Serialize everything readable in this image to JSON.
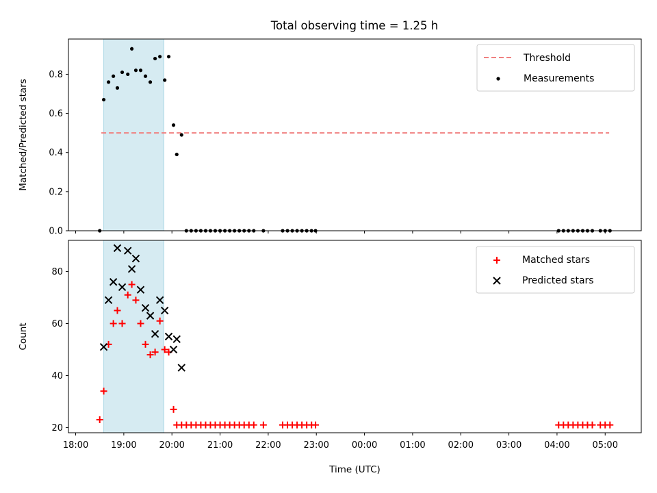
{
  "title": "Total observing time = 1.25 h",
  "colors": {
    "threshold": "#f08080",
    "measurement": "#000000",
    "matched": "#ff0000",
    "predicted": "#000000",
    "span": "#add8e6"
  },
  "chart_data": [
    {
      "type": "scatter",
      "name": "ratio",
      "ylabel": "Matched/Predicted stars",
      "xlabel": "",
      "ylim": [
        0,
        0.98
      ],
      "yticks": [
        0.0,
        0.2,
        0.4,
        0.6,
        0.8
      ],
      "ytick_labels": [
        "0.0",
        "0.2",
        "0.4",
        "0.6",
        "0.8"
      ],
      "legend_position": "top-right",
      "threshold": {
        "name": "Threshold",
        "value": 0.5,
        "x_start": "18:32",
        "x_end": "05:05"
      },
      "span": {
        "x_start": "18:35",
        "x_end": "19:50"
      },
      "series": [
        {
          "name": "Measurements",
          "x": [
            "18:30",
            "18:35",
            "18:41",
            "18:47",
            "18:52",
            "18:58",
            "19:05",
            "19:10",
            "19:15",
            "19:21",
            "19:27",
            "19:33",
            "19:39",
            "19:45",
            "19:51",
            "19:56",
            "20:02",
            "20:06",
            "20:12",
            "20:18",
            "20:24",
            "20:30",
            "20:36",
            "20:42",
            "20:48",
            "20:54",
            "21:00",
            "21:06",
            "21:12",
            "21:18",
            "21:24",
            "21:30",
            "21:36",
            "21:42",
            "21:54",
            "22:18",
            "22:24",
            "22:30",
            "22:36",
            "22:42",
            "22:48",
            "22:54",
            "22:59",
            "04:02",
            "04:08",
            "04:14",
            "04:20",
            "04:26",
            "04:32",
            "04:38",
            "04:44",
            "04:54",
            "05:00",
            "05:06"
          ],
          "values": [
            0.0,
            0.67,
            0.76,
            0.79,
            0.73,
            0.81,
            0.8,
            0.93,
            0.82,
            0.82,
            0.79,
            0.76,
            0.88,
            0.89,
            0.77,
            0.89,
            0.54,
            0.39,
            0.49,
            0.0,
            0.0,
            0.0,
            0.0,
            0.0,
            0.0,
            0.0,
            0.0,
            0.0,
            0.0,
            0.0,
            0.0,
            0.0,
            0.0,
            0.0,
            0.0,
            0.0,
            0.0,
            0.0,
            0.0,
            0.0,
            0.0,
            0.0,
            0.0,
            0.0,
            0.0,
            0.0,
            0.0,
            0.0,
            0.0,
            0.0,
            0.0,
            0.0,
            0.0,
            0.0
          ]
        }
      ]
    },
    {
      "type": "scatter",
      "name": "counts",
      "ylabel": "Count",
      "xlabel": "Time (UTC)",
      "ylim": [
        18,
        92
      ],
      "yticks": [
        20,
        40,
        60,
        80
      ],
      "ytick_labels": [
        "20",
        "40",
        "60",
        "80"
      ],
      "x_ticks": [
        "18:00",
        "19:00",
        "20:00",
        "21:00",
        "22:00",
        "23:00",
        "00:00",
        "01:00",
        "02:00",
        "03:00",
        "04:00",
        "05:00"
      ],
      "legend_position": "top-right",
      "span": {
        "x_start": "18:35",
        "x_end": "19:50"
      },
      "series": [
        {
          "name": "Matched stars",
          "marker": "plus",
          "x": [
            "18:30",
            "18:35",
            "18:41",
            "18:47",
            "18:52",
            "18:58",
            "19:05",
            "19:10",
            "19:15",
            "19:21",
            "19:27",
            "19:33",
            "19:39",
            "19:45",
            "19:51",
            "19:56",
            "20:02",
            "20:06",
            "20:12",
            "20:18",
            "20:24",
            "20:30",
            "20:36",
            "20:42",
            "20:48",
            "20:54",
            "21:00",
            "21:06",
            "21:12",
            "21:18",
            "21:24",
            "21:30",
            "21:36",
            "21:42",
            "21:54",
            "22:18",
            "22:24",
            "22:30",
            "22:36",
            "22:42",
            "22:48",
            "22:54",
            "22:59",
            "04:02",
            "04:08",
            "04:14",
            "04:20",
            "04:26",
            "04:32",
            "04:38",
            "04:44",
            "04:54",
            "05:00",
            "05:06"
          ],
          "values": [
            23,
            34,
            52,
            60,
            65,
            60,
            71,
            75,
            69,
            60,
            52,
            48,
            49,
            61,
            50,
            49,
            27,
            21,
            21,
            21,
            21,
            21,
            21,
            21,
            21,
            21,
            21,
            21,
            21,
            21,
            21,
            21,
            21,
            21,
            21,
            21,
            21,
            21,
            21,
            21,
            21,
            21,
            21,
            21,
            21,
            21,
            21,
            21,
            21,
            21,
            21,
            21,
            21,
            21
          ]
        },
        {
          "name": "Predicted stars",
          "marker": "x",
          "x": [
            "18:35",
            "18:41",
            "18:47",
            "18:52",
            "18:58",
            "19:05",
            "19:10",
            "19:15",
            "19:21",
            "19:27",
            "19:33",
            "19:39",
            "19:45",
            "19:51",
            "19:56",
            "20:02",
            "20:06",
            "20:12"
          ],
          "values": [
            51,
            69,
            76,
            89,
            74,
            88,
            81,
            85,
            73,
            66,
            63,
            56,
            69,
            65,
            55,
            50,
            54,
            43
          ]
        }
      ]
    }
  ]
}
